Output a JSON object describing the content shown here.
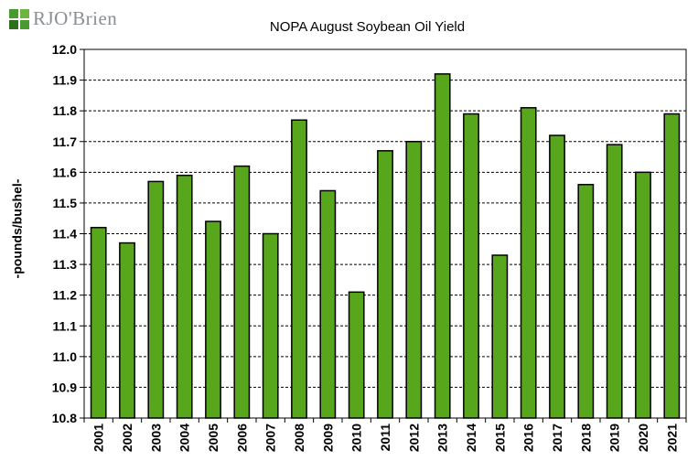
{
  "brand": {
    "logo_text": "RJO'Brien",
    "logo_icon": "rjo-brien-logo-mark",
    "colors": {
      "mark_top": "#4a9a2e",
      "mark_bottom": "#2e6f1c",
      "text": "#8a8f94"
    }
  },
  "chart_data": {
    "type": "bar",
    "title": "NOPA August Soybean Oil Yield",
    "xlabel": "",
    "ylabel": "-pounds/bushel-",
    "ylim": [
      10.8,
      12.0
    ],
    "yticks": [
      "10.8",
      "10.9",
      "11.0",
      "11.1",
      "11.2",
      "11.3",
      "11.4",
      "11.5",
      "11.6",
      "11.7",
      "11.8",
      "11.9",
      "12.0"
    ],
    "categories": [
      "2001",
      "2002",
      "2003",
      "2004",
      "2005",
      "2006",
      "2007",
      "2008",
      "2009",
      "2010",
      "2011",
      "2012",
      "2013",
      "2014",
      "2015",
      "2016",
      "2017",
      "2018",
      "2019",
      "2020",
      "2021"
    ],
    "values": [
      11.42,
      11.37,
      11.57,
      11.59,
      11.44,
      11.62,
      11.4,
      11.77,
      11.54,
      11.21,
      11.67,
      11.7,
      11.92,
      11.79,
      11.33,
      11.81,
      11.72,
      11.56,
      11.69,
      11.6,
      11.79
    ],
    "grid": true,
    "legend": "none",
    "bar_color": "#58a61c",
    "bar_edge_color": "#000000"
  }
}
